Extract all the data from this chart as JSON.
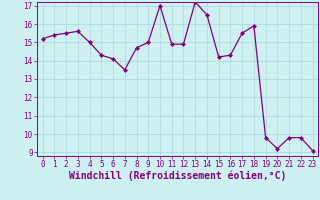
{
  "x": [
    0,
    1,
    2,
    3,
    4,
    5,
    6,
    7,
    8,
    9,
    10,
    11,
    12,
    13,
    14,
    15,
    16,
    17,
    18,
    19,
    20,
    21,
    22,
    23
  ],
  "y": [
    15.2,
    15.4,
    15.5,
    15.6,
    15.0,
    14.3,
    14.1,
    13.5,
    14.7,
    15.0,
    17.0,
    14.9,
    14.9,
    17.2,
    16.5,
    14.2,
    14.3,
    15.5,
    15.9,
    9.8,
    9.2,
    9.8,
    9.8,
    9.1
  ],
  "line_color": "#800080",
  "marker": "D",
  "marker_size": 2.0,
  "bg_color": "#cff0f0",
  "grid_color": "#aad8d8",
  "xlabel": "Windchill (Refroidissement éolien,°C)",
  "xlabel_color": "#800080",
  "ylim": [
    9,
    17
  ],
  "xlim": [
    -0.5,
    23.5
  ],
  "yticks": [
    9,
    10,
    11,
    12,
    13,
    14,
    15,
    16,
    17
  ],
  "xticks": [
    0,
    1,
    2,
    3,
    4,
    5,
    6,
    7,
    8,
    9,
    10,
    11,
    12,
    13,
    14,
    15,
    16,
    17,
    18,
    19,
    20,
    21,
    22,
    23
  ],
  "tick_color": "#800080",
  "tick_fontsize": 5.5,
  "xlabel_fontsize": 7.0,
  "linewidth": 0.9
}
